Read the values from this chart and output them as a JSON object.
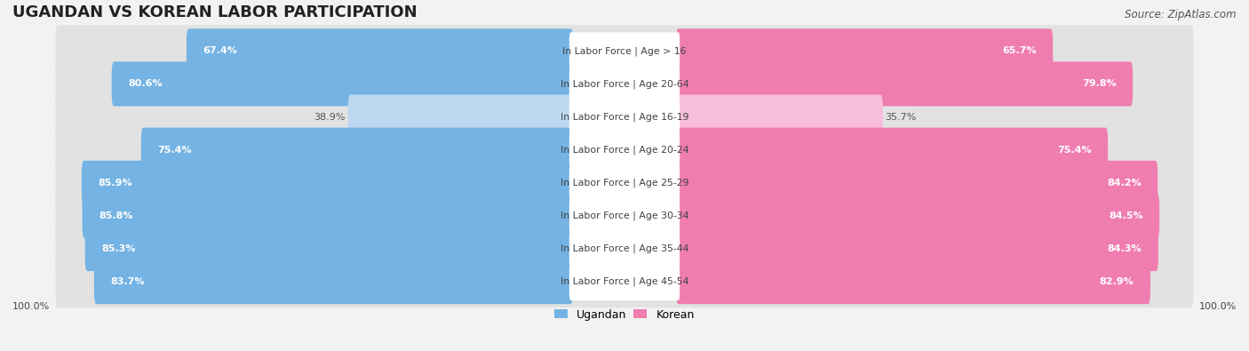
{
  "title": "UGANDAN VS KOREAN LABOR PARTICIPATION",
  "source": "Source: ZipAtlas.com",
  "categories": [
    "In Labor Force | Age > 16",
    "In Labor Force | Age 20-64",
    "In Labor Force | Age 16-19",
    "In Labor Force | Age 20-24",
    "In Labor Force | Age 25-29",
    "In Labor Force | Age 30-34",
    "In Labor Force | Age 35-44",
    "In Labor Force | Age 45-54"
  ],
  "ugandan_values": [
    67.4,
    80.6,
    38.9,
    75.4,
    85.9,
    85.8,
    85.3,
    83.7
  ],
  "korean_values": [
    65.7,
    79.8,
    35.7,
    75.4,
    84.2,
    84.5,
    84.3,
    82.9
  ],
  "ugandan_color": "#74B3E3",
  "ugandan_color_light": "#BDD8F0",
  "korean_color": "#F07DB0",
  "korean_color_light": "#F8BDD9",
  "row_bg_color": "#E2E2E2",
  "bg_color": "#F2F2F2",
  "title_fontsize": 13,
  "source_fontsize": 8.5,
  "value_fontsize": 8,
  "label_fontsize": 7.8,
  "axis_label": "100.0%",
  "legend_ugandan": "Ugandan",
  "legend_korean": "Korean",
  "light_threshold": 50
}
